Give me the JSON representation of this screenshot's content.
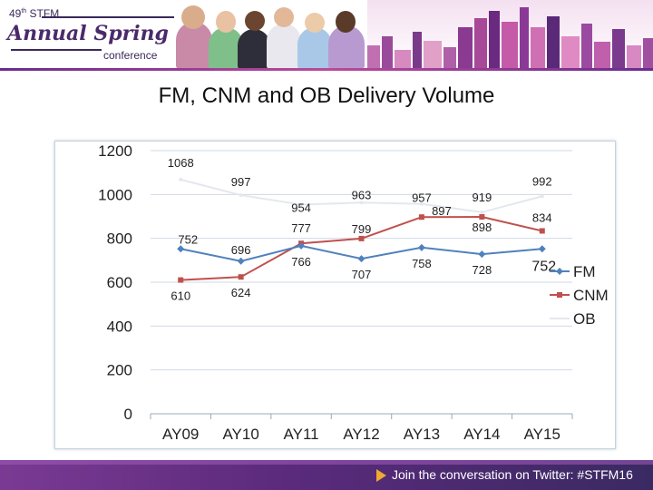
{
  "header": {
    "edition": "49",
    "edition_suffix": "th",
    "org": "STFM",
    "event_name": "Annual Spring",
    "event_sub": "conference"
  },
  "slide_title": "FM, CNM and OB Delivery Volume",
  "footer": {
    "text": "Join the conversation on Twitter: #STFM16"
  },
  "colors": {
    "fm": "#4f81bd",
    "cnm": "#c0504d",
    "ob": "#e4e8ee",
    "gridline": "#d0d8e4",
    "axis_text": "#222222"
  },
  "chart_data": {
    "type": "line",
    "title": "",
    "xlabel": "",
    "ylabel": "",
    "ylim": [
      0,
      1200
    ],
    "yticks": [
      0,
      200,
      400,
      600,
      800,
      1000,
      1200
    ],
    "categories": [
      "AY09",
      "AY10",
      "AY11",
      "AY12",
      "AY13",
      "AY14",
      "AY15"
    ],
    "grid": true,
    "legend_position": "right",
    "series": [
      {
        "key": "fm",
        "name": "FM",
        "values": [
          752,
          696,
          766,
          707,
          758,
          728,
          752
        ]
      },
      {
        "key": "cnm",
        "name": "CNM",
        "values": [
          610,
          624,
          777,
          799,
          897,
          898,
          834
        ]
      },
      {
        "key": "ob",
        "name": "OB",
        "values": [
          1068,
          997,
          954,
          963,
          957,
          919,
          992
        ]
      }
    ],
    "extra_annotation": {
      "text": "752",
      "series": "fm",
      "index": 6
    }
  }
}
